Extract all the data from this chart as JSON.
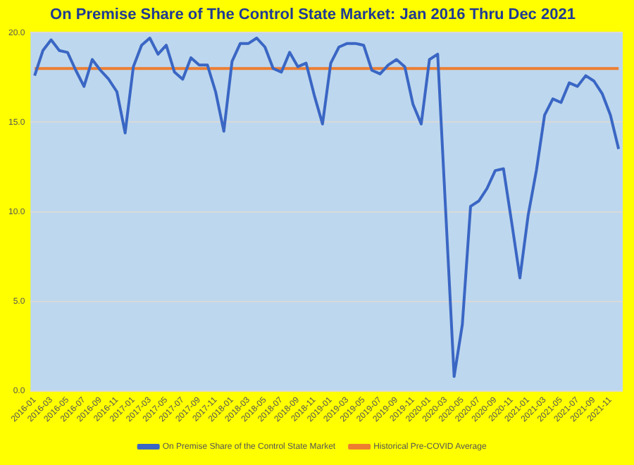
{
  "chart_data": {
    "type": "line",
    "title": "On Premise Share of The Control State Market: Jan 2016 Thru Dec 2021",
    "categories": [
      "2016-01",
      null,
      "2016-03",
      null,
      "2016-05",
      null,
      "2016-07",
      null,
      "2016-09",
      null,
      "2016-11",
      null,
      "2017-01",
      null,
      "2017-03",
      null,
      "2017-05",
      null,
      "2017-07",
      null,
      "2017-09",
      null,
      "2017-11",
      null,
      "2018-01",
      null,
      "2018-03",
      null,
      "2018-05",
      null,
      "2018-07",
      null,
      "2018-09",
      null,
      "2018-11",
      null,
      "2019-01",
      null,
      "2019-03",
      null,
      "2019-05",
      null,
      "2019-07",
      null,
      "2019-09",
      null,
      "2019-11",
      null,
      "2020-01",
      null,
      "2020-03",
      null,
      "2020-05",
      null,
      "2020-07",
      null,
      "2020-09",
      null,
      "2020-11",
      null,
      "2021-01",
      null,
      "2021-03",
      null,
      "2021-05",
      null,
      "2021-07",
      null,
      "2021-09",
      null,
      "2021-11",
      null
    ],
    "series": [
      {
        "name": "On Premise Share of the Control State Market",
        "color": "#3a66c4",
        "values": [
          17.6,
          19.0,
          19.6,
          19.0,
          18.9,
          17.9,
          17.0,
          18.5,
          17.9,
          17.4,
          16.7,
          14.4,
          18.1,
          19.3,
          19.7,
          18.8,
          19.3,
          17.8,
          17.4,
          18.6,
          18.2,
          18.2,
          16.7,
          14.5,
          18.4,
          19.4,
          19.4,
          19.7,
          19.2,
          18.0,
          17.8,
          18.9,
          18.1,
          18.3,
          16.5,
          14.9,
          18.3,
          19.2,
          19.4,
          19.4,
          19.3,
          17.9,
          17.7,
          18.2,
          18.5,
          18.1,
          16.0,
          14.9,
          18.5,
          18.8,
          9.8,
          0.8,
          3.7,
          10.3,
          10.6,
          11.3,
          12.3,
          12.4,
          9.4,
          6.3,
          9.8,
          12.3,
          15.4,
          16.3,
          16.1,
          17.2,
          17.0,
          17.6,
          17.3,
          16.6,
          15.4,
          13.5
        ]
      },
      {
        "name": "Historical Pre-COVID Average",
        "color": "#ed7d31",
        "values": [
          18.0,
          18.0,
          18.0,
          18.0,
          18.0,
          18.0,
          18.0,
          18.0,
          18.0,
          18.0,
          18.0,
          18.0,
          18.0,
          18.0,
          18.0,
          18.0,
          18.0,
          18.0,
          18.0,
          18.0,
          18.0,
          18.0,
          18.0,
          18.0,
          18.0,
          18.0,
          18.0,
          18.0,
          18.0,
          18.0,
          18.0,
          18.0,
          18.0,
          18.0,
          18.0,
          18.0,
          18.0,
          18.0,
          18.0,
          18.0,
          18.0,
          18.0,
          18.0,
          18.0,
          18.0,
          18.0,
          18.0,
          18.0,
          18.0,
          18.0,
          18.0,
          18.0,
          18.0,
          18.0,
          18.0,
          18.0,
          18.0,
          18.0,
          18.0,
          18.0,
          18.0,
          18.0,
          18.0,
          18.0,
          18.0,
          18.0,
          18.0,
          18.0,
          18.0,
          18.0,
          18.0,
          18.0
        ]
      }
    ],
    "ylim": [
      0,
      20
    ],
    "yticks": [
      {
        "value": 0,
        "label": "0.0"
      },
      {
        "value": 5,
        "label": "5.0"
      },
      {
        "value": 10,
        "label": "10.0"
      },
      {
        "value": 15,
        "label": "15.0"
      },
      {
        "value": 20,
        "label": "20.0"
      }
    ],
    "grid": "y",
    "legend": "bottom",
    "marker": "none",
    "line_style": "solid"
  }
}
